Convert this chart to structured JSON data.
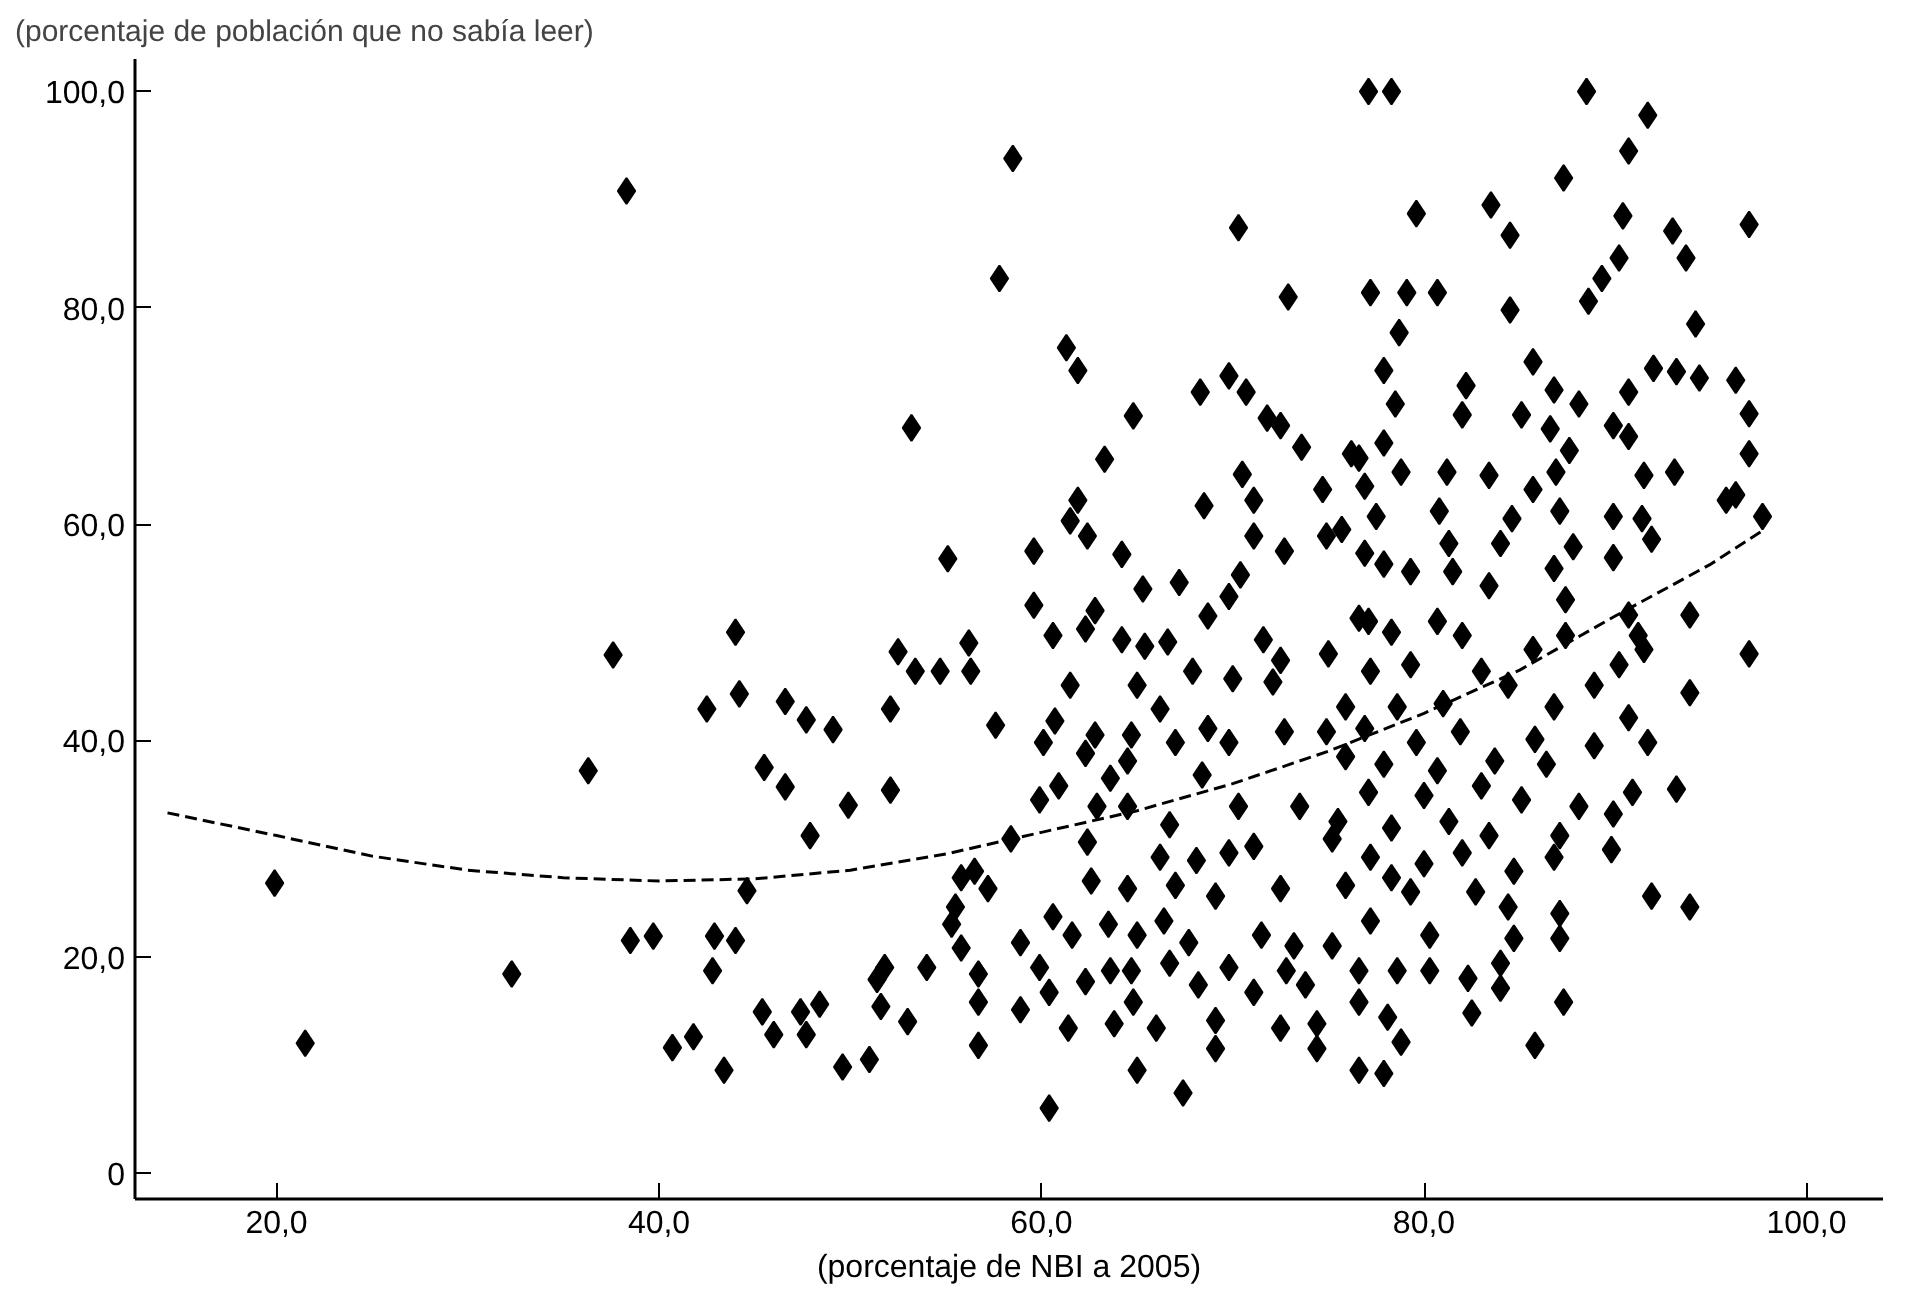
{
  "chart_data": {
    "type": "scatter",
    "ylabel": "(porcentaje de población que no sabía leer)",
    "xlabel": "(porcentaje de NBI a 2005)",
    "xlim": [
      12.6,
      104
    ],
    "ylim": [
      -2.4,
      103
    ],
    "xticks": [
      {
        "value": 20,
        "label": "20,0"
      },
      {
        "value": 40,
        "label": "40,0"
      },
      {
        "value": 60,
        "label": "60,0"
      },
      {
        "value": 80,
        "label": "80,0"
      },
      {
        "value": 100,
        "label": "100,0"
      }
    ],
    "yticks": [
      0,
      {
        "value": 20,
        "label": "20,0"
      },
      {
        "value": 40,
        "label": "40,0"
      },
      {
        "value": 60,
        "label": "60,0"
      },
      {
        "value": 80,
        "label": "80,0"
      },
      {
        "value": 100,
        "label": "100,0"
      }
    ],
    "grid": false,
    "series": [
      {
        "color": "#000000",
        "marker": "diamond",
        "x": [
          38.3,
          53.2,
          55.1,
          44.0,
          37.6,
          52.5,
          53.4,
          54.7,
          56.2,
          56.3,
          42.5,
          44.2,
          46.6,
          47.7,
          49.1,
          52.1,
          36.3,
          45.5,
          46.6,
          49.9,
          52.1,
          47.9,
          19.9,
          44.6,
          55.8,
          55.5,
          55.3,
          38.5,
          39.7,
          42.9,
          44.0,
          55.8,
          32.3,
          42.8,
          51.8,
          51.4,
          54.0,
          56.7,
          21.5,
          40.7,
          41.8,
          43.4,
          45.4,
          46.0,
          47.4,
          47.7,
          48.4,
          49.6,
          51.0,
          51.6,
          53.0,
          56.7,
          56.7,
          77.1,
          78.3,
          58.5,
          70.3,
          57.8,
          72.9,
          77.2,
          79.1,
          78.7,
          77.9,
          78.5,
          61.3,
          61.9,
          68.3,
          69.8,
          70.7,
          64.8,
          71.8,
          72.5,
          73.6,
          63.3,
          70.5,
          74.7,
          76.6,
          77.9,
          76.9,
          77.5,
          78.8,
          61.9,
          61.5,
          62.4,
          68.5,
          71.1,
          71.1,
          72.7,
          74.9,
          59.6,
          64.2,
          65.3,
          67.2,
          70.4,
          76.9,
          77.9,
          59.6,
          62.8,
          62.3,
          68.7,
          69.8,
          60.6,
          64.2,
          65.4,
          66.6,
          71.6,
          72.5,
          72.1,
          75.0,
          77.1,
          78.3,
          67.9,
          70.0,
          61.5,
          65.0,
          66.2,
          57.6,
          60.7,
          60.1,
          62.8,
          64.7,
          67.0,
          68.7,
          69.8,
          72.7,
          74.9,
          62.3,
          64.5,
          68.4,
          63.6,
          59.9,
          60.9,
          62.9,
          64.5,
          70.3,
          73.5,
          58.4,
          62.4,
          66.7,
          66.2,
          68.1,
          69.8,
          71.1,
          75.2,
          56.5,
          57.2,
          62.6,
          64.5,
          67.0,
          69.1,
          72.5,
          78.3,
          60.6,
          61.6,
          63.5,
          65.0,
          66.4,
          67.7,
          71.5,
          73.2,
          75.2,
          58.9,
          59.9,
          62.3,
          63.6,
          64.7,
          66.7,
          68.2,
          69.8,
          71.1,
          72.8,
          73.8,
          76.6,
          58.9,
          60.4,
          61.4,
          63.8,
          64.8,
          66.0,
          69.1,
          69.1,
          72.5,
          74.4,
          76.6,
          78.1,
          78.8,
          65.0,
          67.4,
          60.4,
          74.4,
          76.6,
          77.9,
          88.5,
          91.7,
          90.7,
          87.3,
          79.6,
          83.5,
          84.5,
          90.4,
          93.0,
          93.7,
          97.0,
          90.2,
          89.3,
          88.6,
          80.7,
          84.5,
          94.2,
          85.7,
          86.8,
          82.2,
          88.1,
          90.7,
          92.0,
          93.2,
          94.4,
          96.3,
          97.0,
          97.0,
          96.3,
          97.7,
          95.8,
          82.0,
          85.1,
          86.6,
          89.9,
          90.7,
          87.6,
          81.2,
          83.4,
          85.7,
          86.9,
          91.5,
          93.1,
          76.2,
          80.8,
          84.6,
          87.1,
          89.9,
          91.4,
          91.9,
          75.7,
          81.3,
          84.0,
          87.8,
          89.9,
          79.3,
          81.5,
          83.4,
          86.8,
          87.4,
          93.9,
          97.0,
          93.9,
          90.7,
          91.2,
          76.6,
          80.7,
          82.0,
          85.7,
          87.4,
          91.5,
          90.2,
          77.2,
          79.3,
          83.0,
          84.4,
          88.9,
          75.9,
          78.6,
          81.0,
          86.8,
          90.7,
          76.9,
          79.6,
          81.9,
          85.8,
          88.9,
          91.7,
          75.9,
          77.9,
          80.7,
          83.7,
          86.4,
          90.9,
          93.2,
          77.1,
          80.0,
          83.0,
          85.1,
          88.1,
          89.9,
          75.5,
          78.3,
          81.3,
          83.4,
          87.1,
          89.8,
          77.2,
          80.0,
          82.0,
          84.7,
          86.8,
          91.9,
          93.9,
          75.9,
          79.3,
          82.7,
          84.4,
          87.1,
          77.2,
          80.3,
          84.7,
          87.1,
          78.6,
          80.3,
          82.3,
          84.0,
          84.0,
          82.5,
          87.3,
          85.8
        ],
        "values": [
          90.8,
          68.9,
          56.8,
          50.0,
          47.9,
          48.2,
          46.4,
          46.4,
          49.0,
          46.4,
          42.9,
          44.3,
          43.6,
          41.9,
          41.0,
          42.9,
          37.2,
          37.5,
          35.7,
          34.0,
          35.4,
          31.2,
          26.8,
          26.1,
          27.3,
          24.6,
          23.0,
          21.5,
          21.9,
          21.9,
          21.5,
          20.8,
          18.4,
          18.7,
          19.0,
          17.9,
          19.0,
          18.4,
          12.0,
          11.6,
          12.6,
          9.5,
          14.9,
          12.8,
          14.9,
          12.8,
          15.6,
          9.8,
          10.5,
          15.4,
          14.0,
          15.8,
          11.8,
          100.0,
          100.0,
          93.8,
          87.4,
          82.7,
          81.0,
          81.4,
          81.4,
          77.7,
          74.2,
          71.1,
          76.3,
          74.2,
          72.2,
          73.7,
          72.2,
          70.0,
          69.8,
          69.1,
          67.1,
          66.0,
          64.6,
          63.2,
          66.1,
          67.5,
          63.5,
          60.7,
          64.8,
          62.2,
          60.3,
          58.9,
          61.7,
          62.2,
          58.9,
          57.5,
          58.9,
          57.5,
          57.2,
          54.0,
          54.6,
          55.3,
          57.3,
          56.3,
          52.5,
          52.0,
          50.3,
          51.5,
          53.3,
          49.7,
          49.3,
          48.7,
          49.1,
          49.3,
          47.4,
          45.4,
          48.0,
          51.0,
          50.0,
          46.4,
          45.7,
          45.1,
          45.1,
          42.9,
          41.4,
          41.8,
          39.8,
          40.5,
          40.5,
          39.8,
          41.1,
          39.8,
          40.8,
          40.8,
          38.8,
          38.1,
          36.8,
          36.5,
          34.5,
          35.8,
          33.9,
          33.9,
          33.9,
          33.9,
          30.9,
          30.6,
          32.2,
          29.2,
          28.9,
          29.6,
          30.2,
          30.9,
          27.9,
          26.3,
          27.0,
          26.3,
          26.6,
          25.6,
          26.3,
          27.3,
          23.7,
          22.0,
          23.0,
          22.0,
          23.3,
          21.3,
          22.0,
          21.0,
          21.0,
          21.3,
          19.0,
          17.7,
          18.7,
          18.7,
          19.4,
          17.4,
          19.0,
          16.7,
          18.7,
          17.4,
          18.7,
          15.1,
          16.7,
          13.4,
          13.8,
          15.8,
          13.4,
          14.1,
          11.5,
          13.4,
          13.8,
          15.8,
          14.4,
          12.1,
          9.5,
          7.4,
          6.0,
          11.5,
          9.5,
          9.2,
          100.0,
          97.8,
          94.5,
          92.0,
          88.7,
          89.5,
          86.7,
          88.5,
          87.1,
          84.6,
          87.7,
          84.6,
          82.7,
          80.6,
          81.4,
          79.8,
          78.5,
          75.0,
          72.4,
          72.8,
          71.1,
          72.2,
          74.4,
          74.1,
          73.5,
          73.3,
          70.2,
          66.5,
          62.7,
          60.7,
          62.2,
          70.1,
          70.1,
          68.8,
          69.1,
          68.1,
          66.8,
          64.8,
          64.5,
          63.2,
          64.8,
          64.5,
          64.8,
          66.5,
          61.2,
          60.5,
          61.2,
          60.7,
          60.5,
          58.6,
          59.5,
          58.2,
          58.2,
          57.9,
          56.9,
          55.6,
          55.6,
          54.3,
          55.9,
          53.0,
          51.6,
          48.0,
          44.4,
          51.6,
          49.7,
          51.3,
          51.0,
          49.7,
          48.4,
          49.7,
          48.4,
          47.0,
          46.4,
          47.0,
          46.4,
          45.1,
          45.1,
          43.1,
          43.1,
          43.4,
          43.1,
          42.1,
          41.1,
          39.8,
          40.8,
          40.1,
          39.5,
          39.8,
          38.5,
          37.8,
          37.2,
          38.1,
          37.8,
          35.2,
          35.5,
          35.2,
          34.9,
          35.8,
          34.5,
          33.9,
          33.2,
          32.5,
          31.9,
          32.5,
          31.2,
          31.2,
          29.9,
          29.2,
          28.6,
          29.6,
          27.9,
          29.2,
          25.6,
          24.6,
          26.6,
          26.0,
          26.0,
          24.6,
          24.0,
          23.3,
          22.0,
          21.7,
          21.7,
          18.7,
          18.7,
          18.0,
          19.4,
          17.1,
          14.8,
          15.8,
          11.8
        ]
      },
      {
        "type": "line",
        "color": "#000000",
        "marker": "none",
        "line_style": "dashed",
        "x": [
          14.3,
          20,
          25,
          30,
          35,
          40,
          45,
          50,
          55,
          60,
          65,
          70,
          75,
          80,
          85,
          90,
          95,
          97.8
        ],
        "values": [
          33.3,
          31.2,
          29.3,
          28.0,
          27.3,
          27.0,
          27.2,
          28.0,
          29.5,
          31.5,
          33.5,
          36.0,
          39.0,
          42.5,
          46.5,
          51.5,
          56.3,
          59.5
        ]
      }
    ]
  }
}
